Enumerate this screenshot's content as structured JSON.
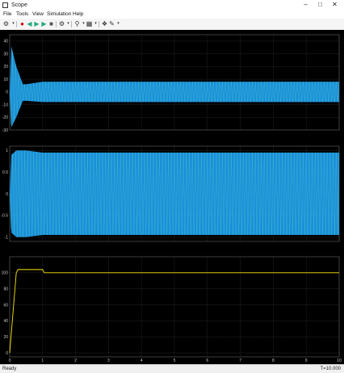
{
  "window": {
    "title": "Scope"
  },
  "menu": [
    "File",
    "Tools",
    "View",
    "Simulation",
    "Help"
  ],
  "toolbar": {
    "icons": [
      "gear-icon",
      "stop-sign-icon",
      "step-back-icon",
      "run-icon",
      "step-forward-icon",
      "stop-icon",
      "settings-icon",
      "zoom-in-icon",
      "zoom-out-icon",
      "cursor-icon",
      "highlight-icon"
    ]
  },
  "status": {
    "left": "Ready",
    "right": "T=10.000"
  },
  "colors": {
    "background": "#000000",
    "grid": "#505050",
    "axis_text": "#c8c8c8",
    "blue": "#1fa8ff",
    "yellow": "#ffe600",
    "teal": "#59d6c8"
  },
  "chart_data": [
    {
      "type": "line",
      "xlim": [
        0,
        10
      ],
      "ylim": [
        -30,
        45
      ],
      "yticks": [
        "40",
        "30",
        "20",
        "10",
        "0",
        "-10",
        "-20",
        "-30"
      ],
      "xticks": [
        "0",
        "1",
        "2",
        "3",
        "4",
        "5",
        "6",
        "7",
        "8",
        "9",
        "10"
      ],
      "grid": true,
      "series": [
        {
          "color": "#1fa8ff",
          "envelope": {
            "x": [
              0,
              0.05,
              0.2,
              0.4,
              0.5,
              1.0,
              10
            ],
            "upper": [
              0,
              36,
              20,
              6,
              6,
              8,
              8
            ],
            "lower": [
              0,
              -28,
              -20,
              -7,
              -7,
              -8,
              -8
            ]
          }
        }
      ]
    },
    {
      "type": "line",
      "xlim": [
        0,
        10
      ],
      "ylim": [
        -1.1,
        1.1
      ],
      "yticks": [
        "1",
        "0.5",
        "0",
        "-0.5",
        "-1"
      ],
      "xticks": [
        "0",
        "1",
        "2",
        "3",
        "4",
        "5",
        "6",
        "7",
        "8",
        "9",
        "10"
      ],
      "grid": true,
      "series": [
        {
          "color": "#1fa8ff",
          "envelope": {
            "x": [
              0,
              0.05,
              0.2,
              0.5,
              1.0,
              10
            ],
            "upper": [
              0,
              0.9,
              1.0,
              1.0,
              0.95,
              0.95
            ],
            "lower": [
              0,
              -0.9,
              -1.0,
              -1.0,
              -0.95,
              -0.95
            ]
          }
        }
      ]
    },
    {
      "type": "line",
      "xlim": [
        0,
        10
      ],
      "ylim": [
        -5,
        120
      ],
      "yticks": [
        "100",
        "80",
        "60",
        "40",
        "20",
        "0"
      ],
      "xticks": [
        "0",
        "1",
        "2",
        "3",
        "4",
        "5",
        "6",
        "7",
        "8",
        "9",
        "10"
      ],
      "grid": true,
      "series": [
        {
          "color": "#ffe600",
          "x": [
            0,
            0.2,
            0.25,
            0.5,
            1.0,
            1.05,
            10
          ],
          "y": [
            0,
            100,
            104,
            104,
            104,
            100,
            100
          ]
        }
      ]
    }
  ]
}
